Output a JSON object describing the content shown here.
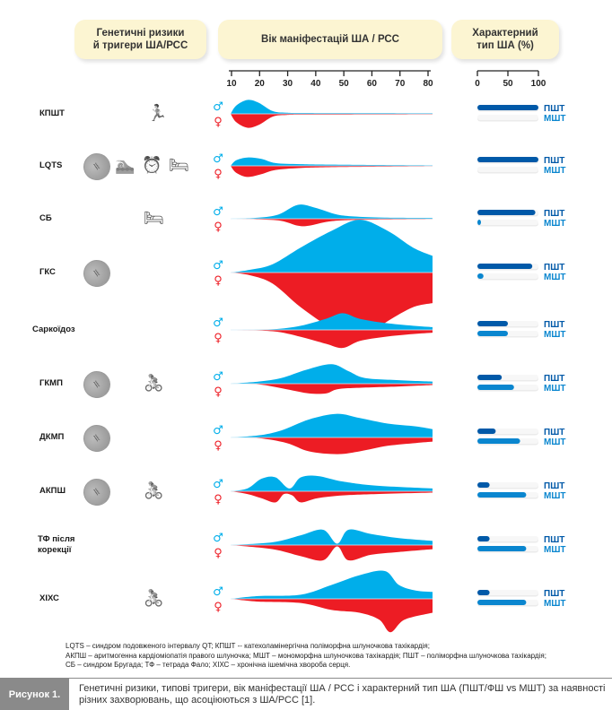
{
  "headers": {
    "risks": "Генетичні ризики\nй тригери ША/РСС",
    "age": "Вік маніфестацій ША / РСС",
    "type": "Характерний\nтип ША (%)"
  },
  "colors": {
    "male": "#00aeea",
    "female": "#ed1c24",
    "pst_bar": "#0059a8",
    "mst_bar": "#0a86cf",
    "header_bg": "#fcf5d2",
    "caption_bg": "#8a8a8a"
  },
  "symbols": {
    "male": "♂",
    "female": "♀"
  },
  "bar_labels": {
    "pst": "ПШТ",
    "mst": "МШТ"
  },
  "chart_data": {
    "type": "area",
    "title": "Вік маніфестацій ША / РСС",
    "x_axis": {
      "ticks": [
        10,
        20,
        30,
        40,
        50,
        60,
        70,
        80
      ],
      "range": [
        10,
        82
      ]
    },
    "type_axis": {
      "ticks": [
        0,
        50,
        100
      ],
      "range": [
        0,
        100
      ]
    },
    "rows": [
      {
        "label": "КПШТ",
        "icons": [
          "running-icon"
        ],
        "pst": 100,
        "mst": 0,
        "male": [
          [
            10,
            0
          ],
          [
            12,
            6
          ],
          [
            16,
            10
          ],
          [
            20,
            8
          ],
          [
            25,
            2
          ],
          [
            30,
            0.8
          ],
          [
            40,
            0.6
          ],
          [
            82,
            0.5
          ]
        ],
        "female": [
          [
            10,
            0
          ],
          [
            12,
            6
          ],
          [
            16,
            10
          ],
          [
            20,
            8
          ],
          [
            25,
            2
          ],
          [
            30,
            0.8
          ],
          [
            40,
            0.6
          ],
          [
            82,
            0.4
          ]
        ]
      },
      {
        "label": "LQTS",
        "icons": [
          "dna-icon",
          "swimming-icon",
          "alarm-clock-icon",
          "sleeping-icon"
        ],
        "pst": 100,
        "mst": 0,
        "male": [
          [
            10,
            0
          ],
          [
            12,
            4
          ],
          [
            16,
            6
          ],
          [
            21,
            5
          ],
          [
            26,
            2
          ],
          [
            35,
            1.2
          ],
          [
            50,
            0.8
          ],
          [
            82,
            0.4
          ]
        ],
        "female": [
          [
            10,
            0
          ],
          [
            12,
            5
          ],
          [
            16,
            8
          ],
          [
            21,
            6
          ],
          [
            26,
            3
          ],
          [
            35,
            1.5
          ],
          [
            50,
            0.8
          ],
          [
            82,
            0.3
          ]
        ]
      },
      {
        "label": "СБ",
        "icons": [
          "sleeping-icon"
        ],
        "pst": 95,
        "mst": 2,
        "male": [
          [
            10,
            0
          ],
          [
            20,
            0.8
          ],
          [
            27,
            3
          ],
          [
            34,
            10
          ],
          [
            40,
            8
          ],
          [
            48,
            3
          ],
          [
            55,
            1.5
          ],
          [
            65,
            0.8
          ],
          [
            82,
            0.6
          ]
        ],
        "female": [
          [
            10,
            0
          ],
          [
            20,
            0.5
          ],
          [
            28,
            1.5
          ],
          [
            34,
            5
          ],
          [
            38,
            5
          ],
          [
            45,
            2
          ],
          [
            55,
            0.8
          ],
          [
            82,
            0.3
          ]
        ]
      },
      {
        "label": "ГКС",
        "icons": [
          "dna-icon"
        ],
        "pst": 90,
        "mst": 10,
        "male": [
          [
            10,
            0
          ],
          [
            17,
            2
          ],
          [
            25,
            6
          ],
          [
            35,
            18
          ],
          [
            46,
            30
          ],
          [
            56,
            38
          ],
          [
            66,
            30
          ],
          [
            75,
            18
          ],
          [
            82,
            12
          ]
        ],
        "female": [
          [
            10,
            0
          ],
          [
            17,
            2
          ],
          [
            25,
            8
          ],
          [
            35,
            25
          ],
          [
            46,
            40
          ],
          [
            56,
            48
          ],
          [
            66,
            35
          ],
          [
            75,
            25
          ],
          [
            82,
            22
          ]
        ]
      },
      {
        "label": "Саркоїдоз",
        "icons": [],
        "pst": 50,
        "mst": 50,
        "male": [
          [
            10,
            0
          ],
          [
            25,
            0.5
          ],
          [
            35,
            3
          ],
          [
            44,
            8
          ],
          [
            50,
            12
          ],
          [
            56,
            8
          ],
          [
            65,
            5
          ],
          [
            75,
            3
          ],
          [
            82,
            2
          ]
        ],
        "female": [
          [
            10,
            0
          ],
          [
            25,
            1
          ],
          [
            35,
            5
          ],
          [
            44,
            10
          ],
          [
            50,
            13
          ],
          [
            56,
            8
          ],
          [
            65,
            5
          ],
          [
            75,
            3
          ],
          [
            82,
            2
          ]
        ]
      },
      {
        "label": "ГКМП",
        "icons": [
          "dna-icon",
          "cycling-icon"
        ],
        "pst": 40,
        "mst": 60,
        "male": [
          [
            10,
            0
          ],
          [
            20,
            1.5
          ],
          [
            28,
            4
          ],
          [
            37,
            10
          ],
          [
            46,
            14
          ],
          [
            52,
            9
          ],
          [
            58,
            4
          ],
          [
            70,
            2.5
          ],
          [
            82,
            1.5
          ]
        ],
        "female": [
          [
            10,
            0
          ],
          [
            20,
            0.5
          ],
          [
            30,
            4
          ],
          [
            38,
            7
          ],
          [
            44,
            7
          ],
          [
            48,
            4
          ],
          [
            55,
            3
          ],
          [
            70,
            2
          ],
          [
            82,
            1
          ]
        ]
      },
      {
        "label": "ДКМП",
        "icons": [
          "dna-icon"
        ],
        "pst": 30,
        "mst": 70,
        "male": [
          [
            10,
            0
          ],
          [
            20,
            1.5
          ],
          [
            28,
            5
          ],
          [
            38,
            13
          ],
          [
            48,
            17
          ],
          [
            56,
            14
          ],
          [
            66,
            10
          ],
          [
            76,
            8
          ],
          [
            82,
            6
          ]
        ],
        "female": [
          [
            10,
            0
          ],
          [
            20,
            0.5
          ],
          [
            30,
            4
          ],
          [
            38,
            10
          ],
          [
            48,
            12
          ],
          [
            56,
            10
          ],
          [
            66,
            6
          ],
          [
            76,
            4
          ],
          [
            82,
            3
          ]
        ]
      },
      {
        "label": "АКПШ",
        "icons": [
          "dna-icon",
          "cycling-icon"
        ],
        "pst": 20,
        "mst": 80,
        "male": [
          [
            10,
            0
          ],
          [
            16,
            2
          ],
          [
            21,
            9
          ],
          [
            26,
            10
          ],
          [
            31,
            2
          ],
          [
            35,
            10
          ],
          [
            41,
            11
          ],
          [
            50,
            7
          ],
          [
            62,
            4
          ],
          [
            82,
            2
          ]
        ],
        "female": [
          [
            10,
            0
          ],
          [
            16,
            2
          ],
          [
            21,
            5
          ],
          [
            26,
            8
          ],
          [
            29,
            2
          ],
          [
            32,
            3
          ],
          [
            35,
            8
          ],
          [
            41,
            5
          ],
          [
            50,
            3
          ],
          [
            62,
            2
          ],
          [
            82,
            1
          ]
        ]
      },
      {
        "label": "ТФ після\nкорекції",
        "icons": [],
        "pst": 20,
        "mst": 80,
        "male": [
          [
            10,
            0
          ],
          [
            25,
            2
          ],
          [
            35,
            7
          ],
          [
            43,
            11
          ],
          [
            48,
            1
          ],
          [
            52,
            11
          ],
          [
            60,
            8
          ],
          [
            70,
            5
          ],
          [
            82,
            3
          ]
        ],
        "female": [
          [
            10,
            0
          ],
          [
            25,
            3
          ],
          [
            35,
            8
          ],
          [
            43,
            11
          ],
          [
            48,
            1
          ],
          [
            52,
            11
          ],
          [
            60,
            7
          ],
          [
            70,
            5
          ],
          [
            82,
            3
          ]
        ]
      },
      {
        "label": "ХІХС",
        "icons": [
          "cycling-icon"
        ],
        "pst": 20,
        "mst": 80,
        "male": [
          [
            10,
            0
          ],
          [
            20,
            2
          ],
          [
            35,
            3
          ],
          [
            46,
            10
          ],
          [
            56,
            17
          ],
          [
            65,
            20
          ],
          [
            70,
            10
          ],
          [
            76,
            6
          ],
          [
            82,
            5
          ]
        ],
        "female": [
          [
            10,
            0
          ],
          [
            20,
            2
          ],
          [
            35,
            3
          ],
          [
            46,
            8
          ],
          [
            56,
            10
          ],
          [
            63,
            15
          ],
          [
            67,
            24
          ],
          [
            72,
            15
          ],
          [
            82,
            10
          ]
        ]
      }
    ]
  },
  "footnote": [
    "LQTS – синдром подовженого інтервалу QT; КПШТ -- катехоламінергічна поліморфна шлуночкова тахікардія;",
    "АКПШ – аритмогенна кардіоміопатія правого шлуночка; МШТ – мономорфна шлуночкова тахікардія; ПШТ – поліморфна шлуночкова тахікардія;",
    "СБ – синдром Бругада; ТФ – тетрада Фало; ХІХС – хронічна ішемічна хвороба серця."
  ],
  "caption": {
    "label": "Рисунок 1.",
    "text": "Генетичні ризики, типові тригери, вік маніфестації ША / РСС і характерний тип ША (ПШТ/ФШ vs МШТ) за наявності різних захворювань, що асоціюються з ША/РСС [1]."
  }
}
